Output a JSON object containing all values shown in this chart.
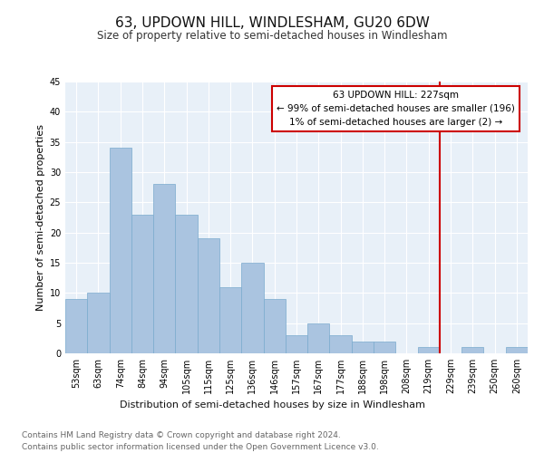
{
  "title": "63, UPDOWN HILL, WINDLESHAM, GU20 6DW",
  "subtitle": "Size of property relative to semi-detached houses in Windlesham",
  "xlabel": "Distribution of semi-detached houses by size in Windlesham",
  "ylabel": "Number of semi-detached properties",
  "footer_line1": "Contains HM Land Registry data © Crown copyright and database right 2024.",
  "footer_line2": "Contains public sector information licensed under the Open Government Licence v3.0.",
  "bar_labels": [
    "53sqm",
    "63sqm",
    "74sqm",
    "84sqm",
    "94sqm",
    "105sqm",
    "115sqm",
    "125sqm",
    "136sqm",
    "146sqm",
    "157sqm",
    "167sqm",
    "177sqm",
    "188sqm",
    "198sqm",
    "208sqm",
    "219sqm",
    "229sqm",
    "239sqm",
    "250sqm",
    "260sqm"
  ],
  "bar_values": [
    9,
    10,
    34,
    23,
    28,
    23,
    19,
    11,
    15,
    9,
    3,
    5,
    3,
    2,
    2,
    0,
    1,
    0,
    1,
    0,
    1
  ],
  "bar_color": "#aac4e0",
  "bar_edge_color": "#7aaace",
  "reference_line_color": "#cc0000",
  "annotation_text": "63 UPDOWN HILL: 227sqm\n← 99% of semi-detached houses are smaller (196)\n1% of semi-detached houses are larger (2) →",
  "annotation_box_color": "#cc0000",
  "annotation_bg": "#ffffff",
  "ylim": [
    0,
    45
  ],
  "yticks": [
    0,
    5,
    10,
    15,
    20,
    25,
    30,
    35,
    40,
    45
  ],
  "background_color": "#e8f0f8",
  "title_fontsize": 11,
  "subtitle_fontsize": 8.5,
  "axis_label_fontsize": 8,
  "tick_fontsize": 7,
  "footer_fontsize": 6.5,
  "annotation_fontsize": 7.5
}
